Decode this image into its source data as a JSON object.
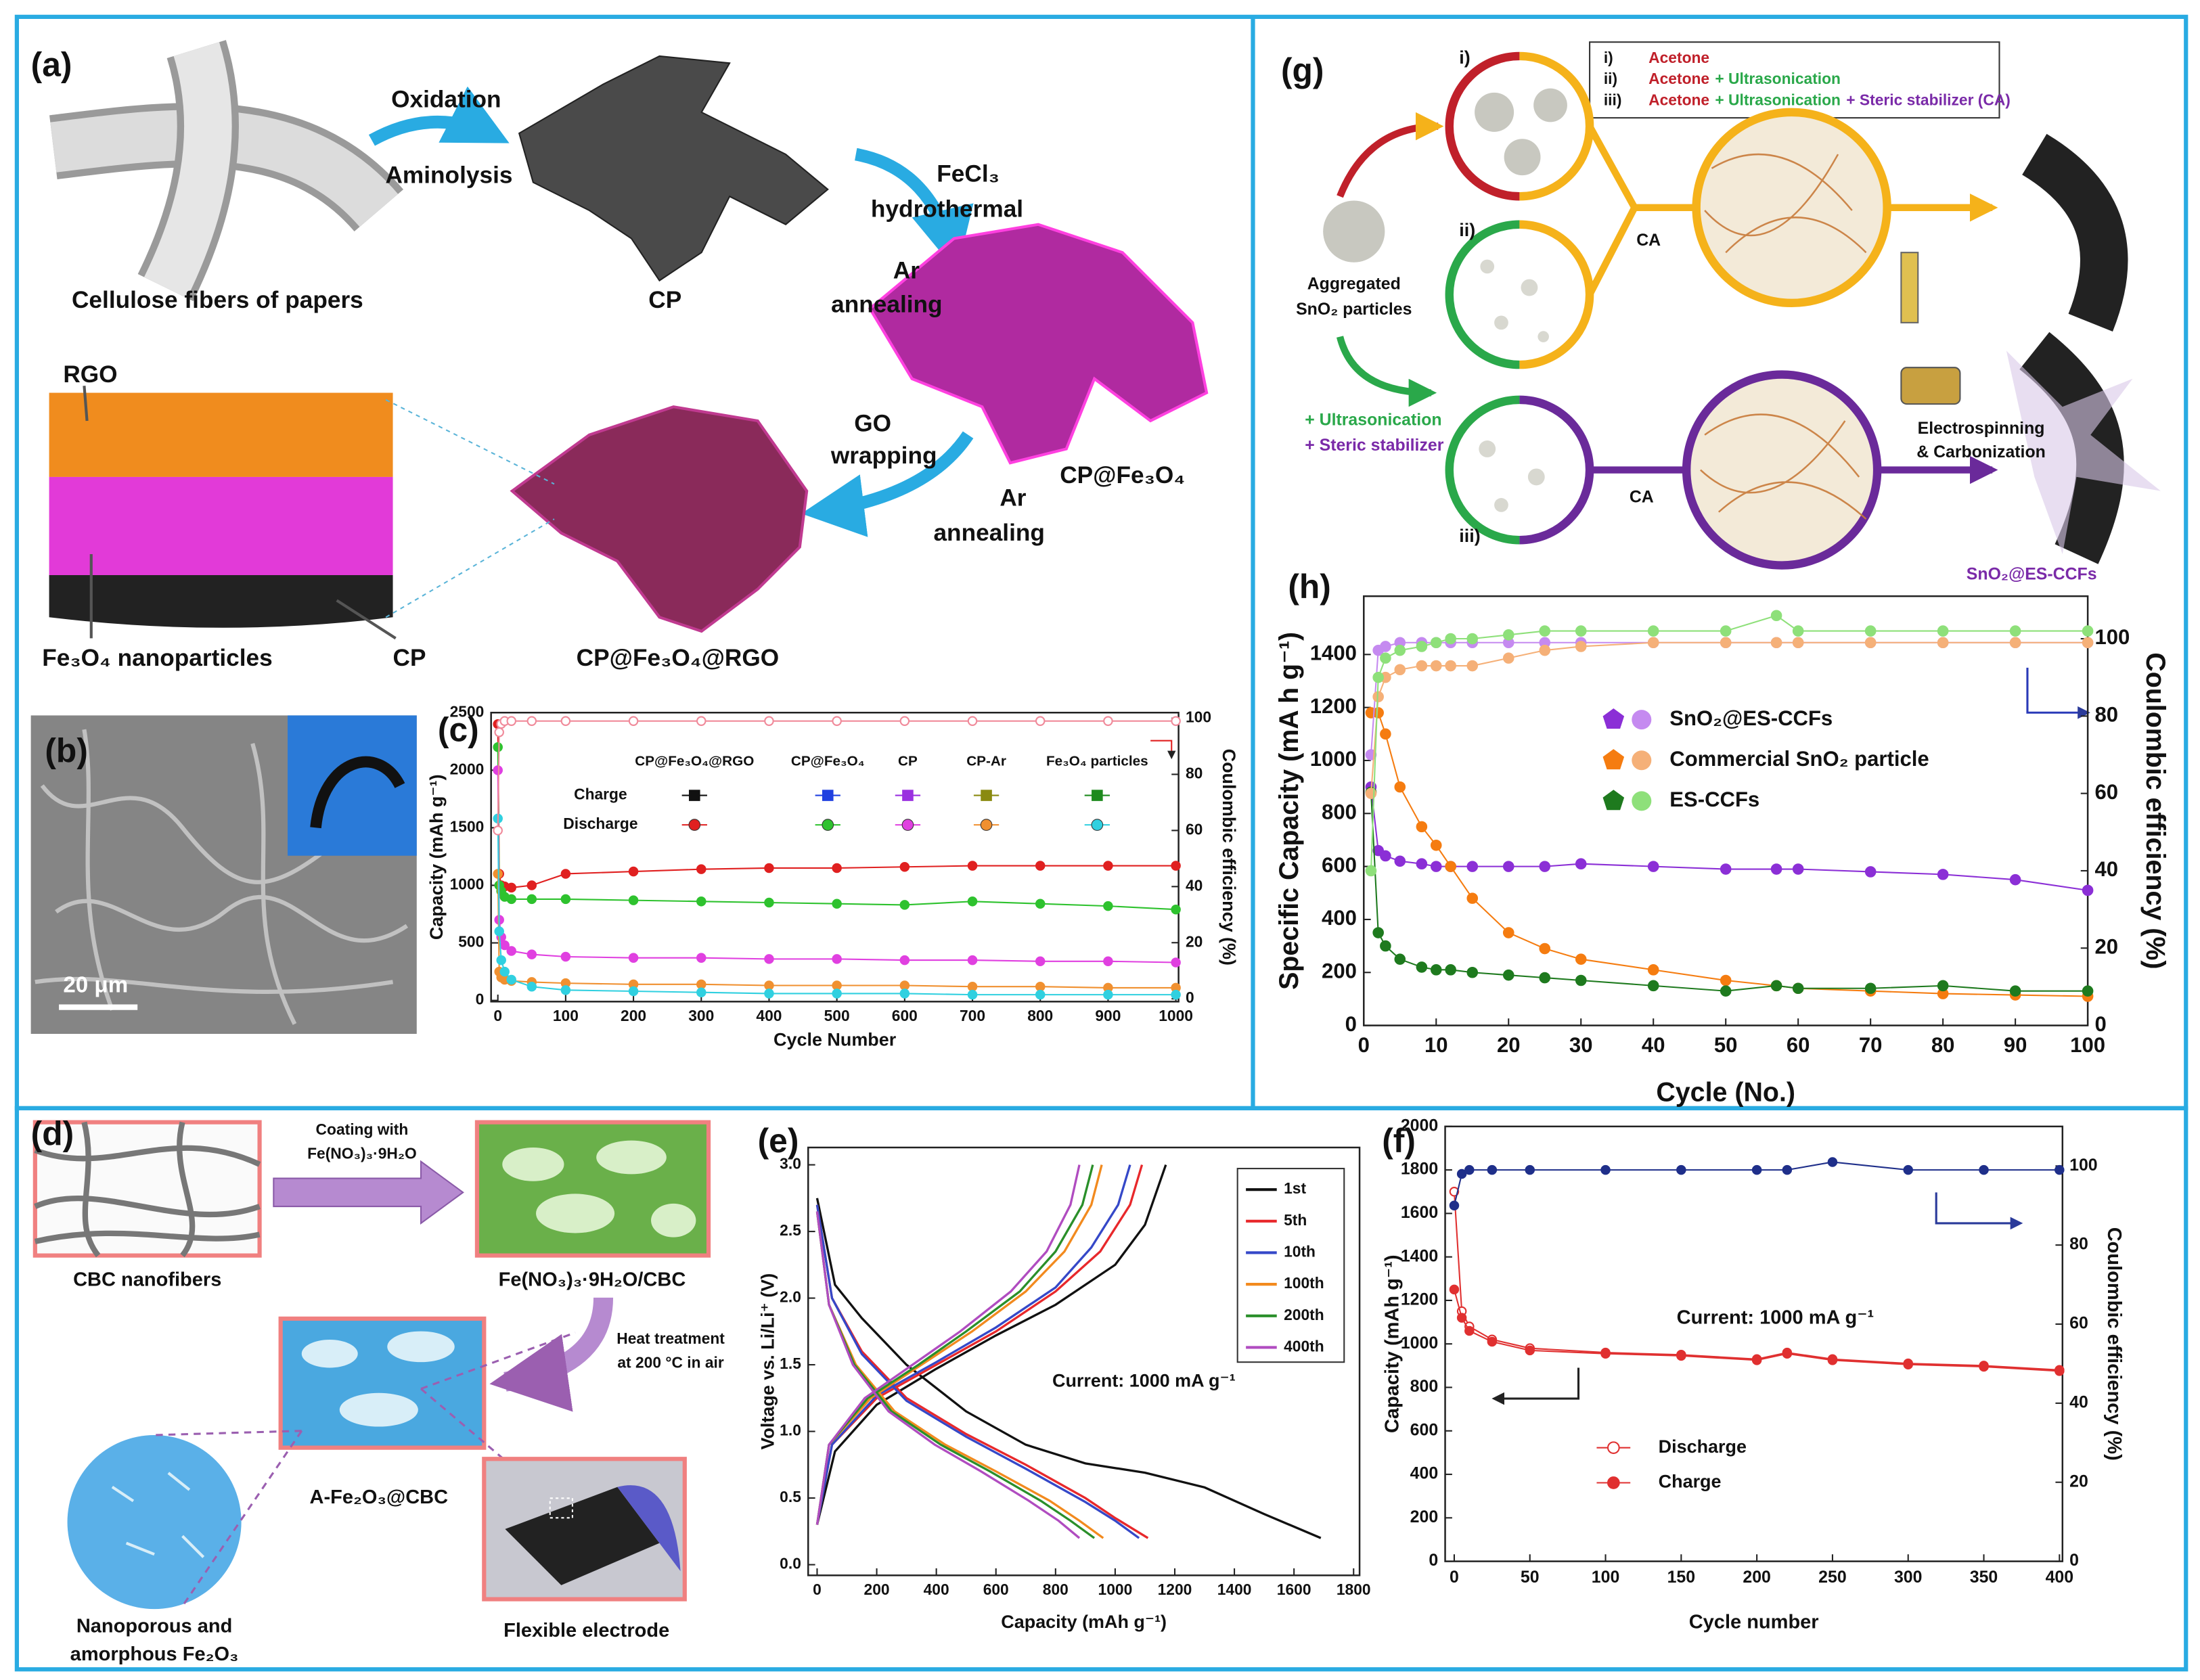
{
  "figure": {
    "panel_labels": [
      "(a)",
      "(b)",
      "(c)",
      "(d)",
      "(e)",
      "(f)",
      "(g)",
      "(h)"
    ],
    "a": {
      "fibers": "Cellulose fibers of papers",
      "step1": [
        "Oxidation",
        "Aminolysis"
      ],
      "cp": "CP",
      "step2": [
        "FeCl₃",
        "hydrothermal",
        "Ar",
        "annealing"
      ],
      "cp_fe3o4": "CP@Fe₃O₄",
      "step3": [
        "GO",
        "wrapping",
        "Ar",
        "annealing"
      ],
      "product": "CP@Fe₃O₄@RGO",
      "layers": [
        "RGO",
        "Fe₃O₄ nanoparticles",
        "CP"
      ]
    },
    "b": {
      "scale_bar": "20 μm"
    },
    "d": {
      "start": "CBC nanofibers",
      "coating": [
        "Coating with",
        "Fe(NO₃)₃·9H₂O"
      ],
      "coated": "Fe(NO₃)₃·9H₂O/CBC",
      "heat": [
        "Heat treatment",
        "at 200 °C in air"
      ],
      "product": "A-Fe₂O₃@CBC",
      "zoom": [
        "Nanoporous and",
        "amorphous Fe₂O₃"
      ],
      "photo": "Flexible electrode"
    },
    "g": {
      "legend": [
        {
          "num": "i)",
          "parts": [
            "Acetone"
          ]
        },
        {
          "num": "ii)",
          "parts": [
            "Acetone",
            "+ Ultrasonication"
          ]
        },
        {
          "num": "iii)",
          "parts": [
            "Acetone",
            "+ Ultrasonication",
            "+ Steric stabilizer (CA)"
          ]
        }
      ],
      "routes": [
        "i)",
        "ii)",
        "iii)"
      ],
      "start": [
        "Aggregated",
        "SnO₂ particles"
      ],
      "treatment": [
        "+ Ultrasonication",
        "+ Steric stabilizer"
      ],
      "ca": "CA",
      "process": [
        "Electrospinning",
        "& Carbonization"
      ],
      "product": "SnO₂@ES-CCFs"
    }
  },
  "chart_data": [
    {
      "type": "line",
      "xlabel": "Cycle Number",
      "ylabel": "Capacity (mAh g⁻¹)",
      "y2label": "Coulombic efficiency (%)",
      "x": [
        0,
        2,
        5,
        10,
        20,
        50,
        100,
        200,
        300,
        400,
        500,
        600,
        700,
        800,
        900,
        1000
      ],
      "xlim": [
        -10,
        1004
      ],
      "xticks": [
        0,
        100,
        200,
        300,
        400,
        500,
        600,
        700,
        800,
        900,
        1000
      ],
      "ylim": [
        -10,
        2500
      ],
      "yticks": [
        0,
        500,
        1000,
        1500,
        2000,
        2500
      ],
      "y2lim": [
        -1,
        102
      ],
      "y2ticks": [
        0,
        20,
        40,
        60,
        80,
        100
      ],
      "legend_rows": [
        "Charge",
        "Discharge"
      ],
      "series": [
        {
          "name": "CP@Fe₃O₄@RGO",
          "color": "#e02020",
          "charge_color": "#111111",
          "marker": "circle",
          "values": [
            2400,
            1100,
            1000,
            990,
            980,
            1000,
            1100,
            1120,
            1140,
            1150,
            1150,
            1160,
            1170,
            1170,
            1170,
            1170
          ]
        },
        {
          "name": "CP@Fe₃O₄",
          "color": "#2ec22e",
          "charge_color": "#2040e0",
          "marker": "circle",
          "values": [
            2200,
            1000,
            950,
            900,
            880,
            880,
            880,
            870,
            860,
            850,
            840,
            830,
            860,
            840,
            820,
            790
          ]
        },
        {
          "name": "CP",
          "color": "#e040e0",
          "charge_color": "#9a30e0",
          "marker": "circle",
          "values": [
            2000,
            700,
            550,
            480,
            430,
            400,
            380,
            370,
            370,
            360,
            360,
            350,
            350,
            340,
            340,
            330
          ]
        },
        {
          "name": "CP-Ar",
          "color": "#f09030",
          "charge_color": "#8a8a10",
          "marker": "circle",
          "values": [
            1100,
            250,
            200,
            180,
            170,
            160,
            150,
            140,
            140,
            130,
            130,
            130,
            120,
            120,
            110,
            110
          ]
        },
        {
          "name": "Fe₃O₄ particles",
          "color": "#30d0e0",
          "charge_color": "#1e8a1e",
          "marker": "circle",
          "values": [
            1580,
            600,
            350,
            250,
            180,
            120,
            90,
            80,
            70,
            60,
            60,
            60,
            50,
            50,
            50,
            50
          ]
        },
        {
          "color": "#f08a9a",
          "axis": "y2",
          "marker": "circle",
          "open": true,
          "values": [
            60,
            95,
            98,
            99,
            99,
            99,
            99,
            99,
            99,
            99,
            99,
            99,
            99,
            99,
            99,
            99
          ]
        }
      ]
    },
    {
      "type": "line",
      "xlabel": "Cycle (No.)",
      "ylabel": "Specific Capacity (mA h g⁻¹)",
      "y2label": "Coulombic efficiency (%)",
      "x": [
        1,
        2,
        3,
        5,
        8,
        10,
        12,
        15,
        20,
        25,
        30,
        40,
        50,
        57,
        60,
        70,
        80,
        90,
        100
      ],
      "xlim": [
        0,
        100
      ],
      "xticks": [
        0,
        10,
        20,
        30,
        40,
        50,
        60,
        70,
        80,
        90,
        100
      ],
      "ylim": [
        0,
        1620
      ],
      "yticks": [
        0,
        200,
        400,
        600,
        800,
        1000,
        1200,
        1400
      ],
      "y2lim": [
        0,
        111
      ],
      "y2ticks": [
        0,
        20,
        40,
        60,
        80,
        100
      ],
      "series": [
        {
          "name": "SnO₂@ES-CCFs",
          "color": "#8b2fd6",
          "marker": "circle",
          "values": [
            900,
            660,
            640,
            620,
            610,
            600,
            600,
            600,
            600,
            600,
            610,
            600,
            590,
            590,
            590,
            580,
            570,
            550,
            510
          ]
        },
        {
          "name": "Commercial SnO₂ particle",
          "color": "#f57c10",
          "marker": "circle",
          "values": [
            1180,
            1180,
            1100,
            900,
            750,
            680,
            600,
            480,
            350,
            290,
            250,
            210,
            170,
            150,
            140,
            130,
            120,
            115,
            110
          ]
        },
        {
          "name": "ES-CCFs",
          "color": "#1e7a1e",
          "marker": "circle",
          "values": [
            880,
            350,
            300,
            250,
            220,
            210,
            210,
            200,
            190,
            180,
            170,
            150,
            130,
            150,
            140,
            140,
            150,
            130,
            130
          ]
        },
        {
          "color": "#c58af0",
          "axis": "y2",
          "marker": "circle",
          "values": [
            70,
            97,
            98,
            99,
            99,
            99,
            99,
            99,
            99,
            99,
            99,
            99,
            99,
            99,
            99,
            99,
            99,
            99,
            99
          ]
        },
        {
          "color": "#f5b078",
          "axis": "y2",
          "marker": "circle",
          "values": [
            60,
            85,
            90,
            92,
            93,
            93,
            93,
            93,
            95,
            97,
            98,
            99,
            99,
            99,
            99,
            99,
            99,
            99,
            99
          ]
        },
        {
          "color": "#8ee07a",
          "axis": "y2",
          "marker": "circle",
          "values": [
            40,
            90,
            95,
            97,
            98,
            99,
            100,
            100,
            101,
            102,
            102,
            102,
            102,
            106,
            102,
            102,
            102,
            102,
            102
          ]
        }
      ]
    },
    {
      "type": "line",
      "xlabel": "Capacity (mAh g⁻¹)",
      "ylabel": "Voltage vs. Li/Li⁺ (V)",
      "annotation": "Current: 1000 mA g⁻¹",
      "xlim": [
        -30,
        1820
      ],
      "xticks": [
        0,
        200,
        400,
        600,
        800,
        1000,
        1200,
        1400,
        1600,
        1800
      ],
      "ylim": [
        -0.08,
        3.13
      ],
      "yticks": [
        {
          "value": 0,
          "label": "0.0"
        },
        0.5,
        {
          "value": 1,
          "label": "1.0"
        },
        1.5,
        {
          "value": 2,
          "label": "2.0"
        },
        2.5,
        {
          "value": 3,
          "label": "3.0"
        }
      ],
      "series": [
        {
          "name": "1st",
          "color": "#111111",
          "x": [
            0,
            60,
            150,
            300,
            500,
            700,
            900,
            1100,
            1300,
            1500,
            1690,
            null,
            0,
            60,
            200,
            400,
            600,
            800,
            1000,
            1100,
            1170
          ],
          "values": [
            2.75,
            2.1,
            1.85,
            1.5,
            1.15,
            0.9,
            0.76,
            0.69,
            0.58,
            0.38,
            0.2,
            null,
            0.3,
            0.85,
            1.2,
            1.47,
            1.72,
            1.95,
            2.25,
            2.55,
            3.0
          ]
        },
        {
          "name": "5th",
          "color": "#e8282b",
          "x": [
            0,
            50,
            150,
            300,
            500,
            700,
            900,
            1000,
            1110,
            null,
            0,
            50,
            200,
            400,
            600,
            800,
            950,
            1050,
            1090
          ],
          "values": [
            2.7,
            2.0,
            1.6,
            1.25,
            0.98,
            0.75,
            0.5,
            0.35,
            0.2,
            null,
            0.3,
            0.9,
            1.25,
            1.5,
            1.75,
            2.05,
            2.35,
            2.7,
            3.0
          ]
        },
        {
          "name": "10th",
          "color": "#3548c8",
          "x": [
            0,
            50,
            150,
            300,
            500,
            700,
            900,
            1000,
            1080,
            null,
            0,
            50,
            200,
            400,
            600,
            800,
            920,
            1010,
            1050
          ],
          "values": [
            2.7,
            2.0,
            1.58,
            1.23,
            0.96,
            0.72,
            0.47,
            0.33,
            0.2,
            null,
            0.3,
            0.9,
            1.27,
            1.52,
            1.78,
            2.08,
            2.38,
            2.7,
            3.0
          ]
        },
        {
          "name": "100th",
          "color": "#f28a1e",
          "x": [
            0,
            40,
            130,
            260,
            430,
            600,
            780,
            880,
            960,
            null,
            0,
            40,
            180,
            350,
            520,
            700,
            830,
            920,
            955
          ],
          "values": [
            2.65,
            1.95,
            1.5,
            1.15,
            0.9,
            0.7,
            0.48,
            0.33,
            0.2,
            null,
            0.3,
            0.9,
            1.25,
            1.5,
            1.75,
            2.05,
            2.35,
            2.7,
            3.0
          ]
        },
        {
          "name": "200th",
          "color": "#2a8f2a",
          "x": [
            0,
            40,
            125,
            250,
            415,
            580,
            750,
            850,
            930,
            null,
            0,
            40,
            170,
            340,
            500,
            680,
            800,
            890,
            925
          ],
          "values": [
            2.65,
            1.95,
            1.5,
            1.15,
            0.9,
            0.7,
            0.48,
            0.33,
            0.2,
            null,
            0.3,
            0.9,
            1.25,
            1.5,
            1.75,
            2.05,
            2.35,
            2.7,
            3.0
          ]
        },
        {
          "name": "400th",
          "color": "#b04cc0",
          "x": [
            0,
            40,
            120,
            240,
            395,
            550,
            710,
            810,
            880,
            null,
            0,
            40,
            160,
            320,
            480,
            650,
            770,
            850,
            880
          ],
          "values": [
            2.65,
            1.95,
            1.5,
            1.15,
            0.9,
            0.7,
            0.48,
            0.33,
            0.2,
            null,
            0.3,
            0.9,
            1.25,
            1.5,
            1.75,
            2.05,
            2.35,
            2.7,
            3.0
          ]
        }
      ]
    },
    {
      "type": "line",
      "xlabel": "Cycle number",
      "ylabel": "Capacity (mAh g⁻¹)",
      "y2label": "Coulombic efficiency (%)",
      "annotation": "Current: 1000 mA g⁻¹",
      "x": [
        0,
        5,
        10,
        25,
        50,
        100,
        150,
        200,
        220,
        250,
        300,
        350,
        400
      ],
      "xlim": [
        -6,
        402
      ],
      "xticks": [
        0,
        50,
        100,
        150,
        200,
        250,
        300,
        350,
        400
      ],
      "ylim": [
        0,
        2000
      ],
      "yticks": [
        0,
        200,
        400,
        600,
        800,
        1000,
        1200,
        1400,
        1600,
        1800,
        2000
      ],
      "y2lim": [
        0,
        110
      ],
      "y2ticks": [
        0,
        20,
        40,
        60,
        80,
        100
      ],
      "series": [
        {
          "name": "Discharge",
          "color": "#e03030",
          "marker": "circle",
          "open": true,
          "values": [
            1700,
            1150,
            1080,
            1020,
            980,
            960,
            950,
            930,
            960,
            930,
            910,
            900,
            880
          ]
        },
        {
          "name": "Charge",
          "color": "#e03030",
          "marker": "circle",
          "values": [
            1250,
            1120,
            1060,
            1010,
            970,
            955,
            945,
            925,
            955,
            925,
            905,
            895,
            875
          ]
        },
        {
          "color": "#1f2f8a",
          "axis": "y2",
          "marker": "circle",
          "values": [
            90,
            98,
            99,
            99,
            99,
            99,
            99,
            99,
            99,
            101,
            99,
            99,
            99
          ]
        }
      ]
    }
  ]
}
